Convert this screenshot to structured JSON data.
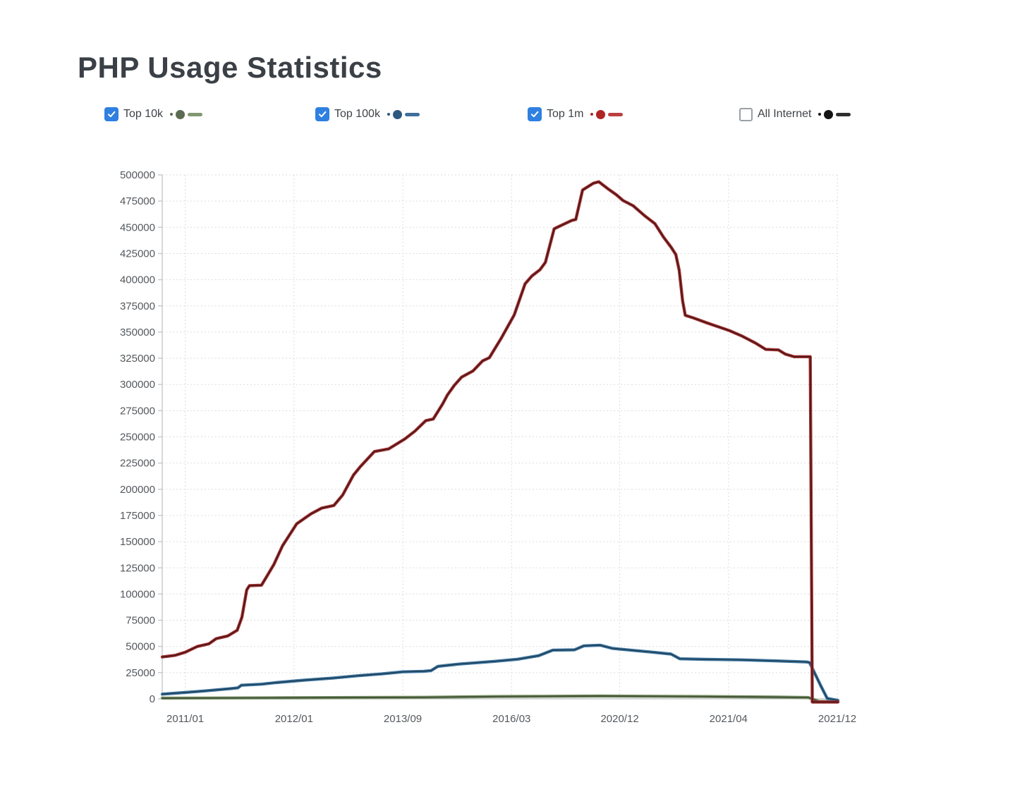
{
  "page": {
    "title": "PHP Usage Statistics"
  },
  "legend": {
    "checkbox_color": "#2f80e0",
    "items": [
      {
        "label": "Top 10k",
        "checked": true,
        "dot_color": "#5d6b52",
        "dash_color": "#7f9a70"
      },
      {
        "label": "Top 100k",
        "checked": true,
        "dot_color": "#2b5980",
        "dash_color": "#3f6f9b"
      },
      {
        "label": "Top 1m",
        "checked": true,
        "dot_color": "#b02424",
        "dash_color": "#bb4040"
      },
      {
        "label": "All Internet",
        "checked": false,
        "dot_color": "#141414",
        "dash_color": "#2f2f2f"
      }
    ]
  },
  "chart_data": {
    "type": "line",
    "title": "PHP Usage Statistics",
    "xlabel": "",
    "ylabel": "",
    "grid": "dotted",
    "legend_position": "top",
    "y_axis": {
      "min": 0,
      "max": 500000,
      "tick_step": 25000
    },
    "y_tick_labels": [
      "0",
      "25000",
      "50000",
      "75000",
      "100000",
      "125000",
      "150000",
      "175000",
      "200000",
      "225000",
      "250000",
      "275000",
      "300000",
      "325000",
      "350000",
      "375000",
      "400000",
      "425000",
      "450000",
      "475000",
      "500000"
    ],
    "x_tick_labels": [
      "2011/01",
      "2012/01",
      "2013/09",
      "2016/03",
      "2020/12",
      "2021/04",
      "2021/12"
    ],
    "x_tick_positions": [
      0.034,
      0.195,
      0.356,
      0.517,
      0.677,
      0.838,
      0.999
    ],
    "series": [
      {
        "name": "Top 10k",
        "visible": true,
        "color": "#7a9368",
        "core_color": "#3e4b33",
        "points": [
          [
            0.0,
            700
          ],
          [
            0.178,
            1000
          ],
          [
            0.387,
            1500
          ],
          [
            0.492,
            2200
          ],
          [
            0.648,
            2700
          ],
          [
            0.805,
            2200
          ],
          [
            0.909,
            1700
          ],
          [
            0.956,
            1300
          ],
          [
            0.972,
            -2500
          ],
          [
            1.0,
            -2500
          ]
        ]
      },
      {
        "name": "Top 100k",
        "visible": true,
        "color": "#4379a4",
        "core_color": "#1d4059",
        "points": [
          [
            0.0,
            4500
          ],
          [
            0.032,
            6000
          ],
          [
            0.061,
            7500
          ],
          [
            0.102,
            9800
          ],
          [
            0.112,
            10500
          ],
          [
            0.117,
            13000
          ],
          [
            0.147,
            14000
          ],
          [
            0.168,
            15500
          ],
          [
            0.21,
            17800
          ],
          [
            0.252,
            19800
          ],
          [
            0.293,
            22300
          ],
          [
            0.325,
            23800
          ],
          [
            0.356,
            25800
          ],
          [
            0.387,
            26300
          ],
          [
            0.398,
            27000
          ],
          [
            0.408,
            31000
          ],
          [
            0.439,
            33200
          ],
          [
            0.492,
            35800
          ],
          [
            0.526,
            37800
          ],
          [
            0.557,
            41200
          ],
          [
            0.578,
            46500
          ],
          [
            0.61,
            46800
          ],
          [
            0.624,
            50600
          ],
          [
            0.648,
            51200
          ],
          [
            0.666,
            48200
          ],
          [
            0.693,
            46500
          ],
          [
            0.724,
            44600
          ],
          [
            0.753,
            42700
          ],
          [
            0.766,
            38200
          ],
          [
            0.805,
            37700
          ],
          [
            0.857,
            37200
          ],
          [
            0.909,
            36200
          ],
          [
            0.954,
            35200
          ],
          [
            0.958,
            34600
          ],
          [
            0.975,
            12000
          ],
          [
            0.984,
            500
          ],
          [
            1.0,
            -1500
          ]
        ]
      },
      {
        "name": "Top 1m",
        "visible": true,
        "color": "#a13434",
        "core_color": "#4c1315",
        "points": [
          [
            0.0,
            40000
          ],
          [
            0.019,
            41500
          ],
          [
            0.034,
            44500
          ],
          [
            0.052,
            50000
          ],
          [
            0.069,
            52500
          ],
          [
            0.08,
            57500
          ],
          [
            0.097,
            60000
          ],
          [
            0.111,
            65500
          ],
          [
            0.118,
            78000
          ],
          [
            0.125,
            104000
          ],
          [
            0.129,
            108000
          ],
          [
            0.147,
            108500
          ],
          [
            0.165,
            128000
          ],
          [
            0.178,
            146000
          ],
          [
            0.199,
            167000
          ],
          [
            0.22,
            176500
          ],
          [
            0.236,
            182000
          ],
          [
            0.254,
            184500
          ],
          [
            0.267,
            194500
          ],
          [
            0.283,
            213500
          ],
          [
            0.293,
            221500
          ],
          [
            0.314,
            236000
          ],
          [
            0.335,
            238500
          ],
          [
            0.359,
            248000
          ],
          [
            0.374,
            255500
          ],
          [
            0.39,
            265500
          ],
          [
            0.401,
            267000
          ],
          [
            0.415,
            281500
          ],
          [
            0.422,
            290000
          ],
          [
            0.432,
            299000
          ],
          [
            0.443,
            307000
          ],
          [
            0.46,
            313000
          ],
          [
            0.474,
            322500
          ],
          [
            0.484,
            325500
          ],
          [
            0.502,
            344500
          ],
          [
            0.521,
            366500
          ],
          [
            0.537,
            396000
          ],
          [
            0.547,
            403500
          ],
          [
            0.559,
            409500
          ],
          [
            0.567,
            416500
          ],
          [
            0.58,
            448500
          ],
          [
            0.586,
            450500
          ],
          [
            0.606,
            456500
          ],
          [
            0.612,
            457500
          ],
          [
            0.622,
            485500
          ],
          [
            0.638,
            492000
          ],
          [
            0.646,
            493500
          ],
          [
            0.659,
            487000
          ],
          [
            0.672,
            481000
          ],
          [
            0.682,
            475500
          ],
          [
            0.697,
            470500
          ],
          [
            0.714,
            461000
          ],
          [
            0.729,
            453500
          ],
          [
            0.742,
            440500
          ],
          [
            0.753,
            431000
          ],
          [
            0.76,
            424000
          ],
          [
            0.765,
            409000
          ],
          [
            0.77,
            380000
          ],
          [
            0.774,
            366000
          ],
          [
            0.786,
            363500
          ],
          [
            0.805,
            359000
          ],
          [
            0.839,
            351500
          ],
          [
            0.857,
            346500
          ],
          [
            0.878,
            339500
          ],
          [
            0.893,
            333500
          ],
          [
            0.912,
            333000
          ],
          [
            0.922,
            329000
          ],
          [
            0.935,
            326500
          ],
          [
            0.959,
            326500
          ],
          [
            0.962,
            -3000
          ],
          [
            1.0,
            -3000
          ]
        ]
      },
      {
        "name": "All Internet",
        "visible": false,
        "color": "#2f2f2f",
        "core_color": "#000000",
        "points": []
      }
    ]
  }
}
